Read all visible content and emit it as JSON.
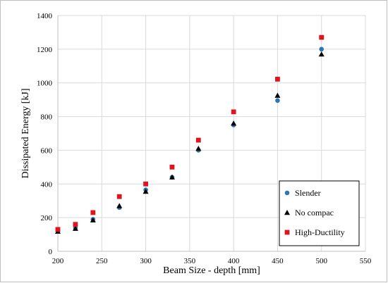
{
  "chart_data": {
    "type": "scatter",
    "xlabel": "Beam Size - depth [mm]",
    "ylabel": "Dissipated Energy  [kJ]",
    "xlim": [
      200,
      550
    ],
    "ylim": [
      0,
      1400
    ],
    "xticks": [
      200,
      250,
      300,
      350,
      400,
      450,
      500,
      550
    ],
    "yticks": [
      0,
      200,
      400,
      600,
      800,
      1000,
      1200,
      1400
    ],
    "grid": true,
    "legend_position": "bottom-right",
    "series": [
      {
        "name": "Slender",
        "marker": "circle",
        "color": "#2e75b6",
        "x": [
          200,
          220,
          240,
          270,
          300,
          330,
          360,
          400,
          450,
          500
        ],
        "y": [
          120,
          140,
          190,
          260,
          365,
          440,
          600,
          750,
          895,
          1200
        ]
      },
      {
        "name": "No compac",
        "marker": "triangle",
        "color": "#000000",
        "x": [
          200,
          220,
          240,
          270,
          300,
          330,
          360,
          400,
          450,
          500
        ],
        "y": [
          118,
          135,
          185,
          270,
          355,
          440,
          610,
          760,
          925,
          1170
        ]
      },
      {
        "name": "High-Ductility",
        "marker": "square",
        "color": "#e0141e",
        "x": [
          200,
          220,
          240,
          270,
          300,
          330,
          360,
          400,
          450,
          500
        ],
        "y": [
          130,
          160,
          230,
          325,
          400,
          500,
          660,
          828,
          1022,
          1270
        ]
      }
    ]
  }
}
